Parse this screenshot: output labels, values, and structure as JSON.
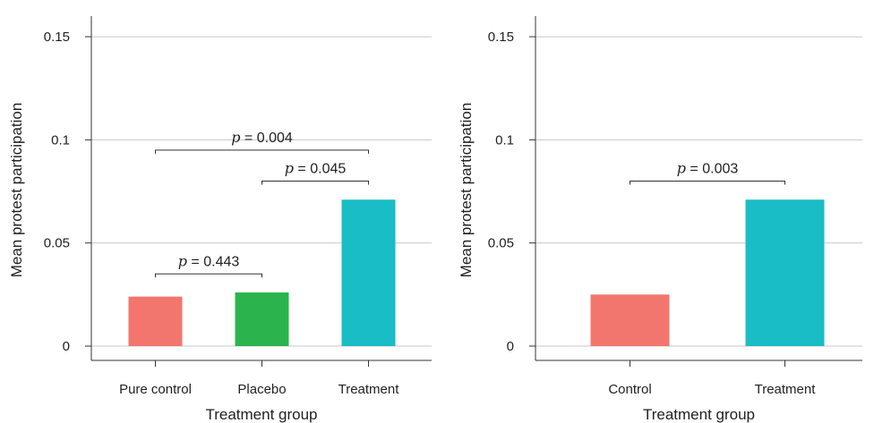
{
  "chart_data": [
    {
      "type": "bar",
      "xlabel": "Treatment group",
      "ylabel": "Mean protest participation",
      "ylim": [
        0,
        0.16
      ],
      "yticks": [
        {
          "value": 0,
          "label": "0"
        },
        {
          "value": 0.05,
          "label": "0.05"
        },
        {
          "value": 0.1,
          "label": "0.1"
        },
        {
          "value": 0.15,
          "label": "0.15"
        }
      ],
      "grid": true,
      "categories": [
        "Pure control",
        "Placebo",
        "Treatment"
      ],
      "values": [
        0.024,
        0.026,
        0.071
      ],
      "colors": [
        "#f2766d",
        "#2bb44d",
        "#19bdc5"
      ],
      "annotations": [
        {
          "from": 0,
          "to": 2,
          "y": 0.095,
          "p_symbol": "p",
          "text": " = 0.004"
        },
        {
          "from": 1,
          "to": 2,
          "y": 0.08,
          "p_symbol": "p",
          "text": " = 0.045"
        },
        {
          "from": 0,
          "to": 1,
          "y": 0.035,
          "p_symbol": "p",
          "text": " = 0.443"
        }
      ]
    },
    {
      "type": "bar",
      "xlabel": "Treatment group",
      "ylabel": "Mean protest participation",
      "ylim": [
        0,
        0.16
      ],
      "yticks": [
        {
          "value": 0,
          "label": "0"
        },
        {
          "value": 0.05,
          "label": "0.05"
        },
        {
          "value": 0.1,
          "label": "0.1"
        },
        {
          "value": 0.15,
          "label": "0.15"
        }
      ],
      "grid": true,
      "categories": [
        "Control",
        "Treatment"
      ],
      "values": [
        0.025,
        0.071
      ],
      "colors": [
        "#f2766d",
        "#19bdc5"
      ],
      "annotations": [
        {
          "from": 0,
          "to": 1,
          "y": 0.08,
          "p_symbol": "p",
          "text": " = 0.003"
        }
      ]
    }
  ]
}
